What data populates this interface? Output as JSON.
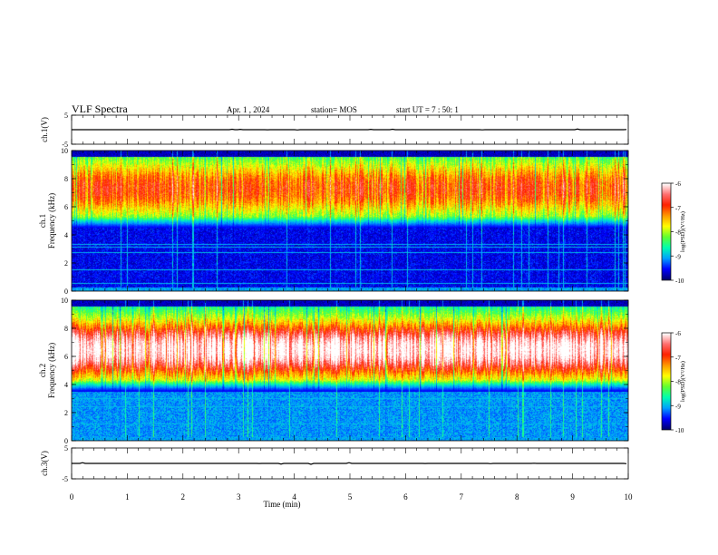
{
  "header": {
    "title": "VLF Spectra",
    "date": "Apr. 1 , 2024",
    "station": "station= MOS",
    "start": "start  UT =   7 : 50: 1"
  },
  "colors": {
    "colormap": [
      "#00006e",
      "#0000ff",
      "#00a0ff",
      "#00ffb0",
      "#60ff30",
      "#ffff00",
      "#ff9800",
      "#ff2000",
      "#ff7070",
      "#ffffff"
    ]
  },
  "chart_data": [
    {
      "type": "line",
      "name": "ch1-waveform",
      "ylabel": "ch.1(V)",
      "ylim": [
        -5,
        5
      ],
      "yticks": [
        "5",
        "-5"
      ],
      "x": [
        0,
        10
      ],
      "y": [
        0,
        0
      ]
    },
    {
      "type": "heatmap",
      "name": "ch1-spectrogram",
      "ylabel_line1": "ch.1",
      "ylabel_line2": "Frequency (kHz)",
      "ylim": [
        0,
        10
      ],
      "yticks": [
        "0",
        "2",
        "4",
        "6",
        "8",
        "10"
      ],
      "xlim": [
        0,
        10
      ],
      "band_top_kHz": 4.5,
      "peak_center_kHz": 7.3,
      "peak_level": 1.8,
      "lines_kHz": [
        0.5,
        1.5,
        2.7,
        3.1,
        3.3
      ],
      "colorbar": {
        "label": "log(PSD)(V²/Hz)",
        "ticks": [
          "-6",
          "-7",
          "-8",
          "-9",
          "-10"
        ],
        "range": [
          -10,
          -6
        ]
      }
    },
    {
      "type": "heatmap",
      "name": "ch2-spectrogram",
      "ylabel_line1": "ch.2",
      "ylabel_line2": "Frequency (kHz)",
      "ylim": [
        0,
        10
      ],
      "yticks": [
        "0",
        "2",
        "4",
        "6",
        "8",
        "10"
      ],
      "xlim": [
        0,
        10
      ],
      "band_top_kHz": 3.5,
      "peak_center_kHz": 6.5,
      "peak_level": 2.8,
      "lines_kHz": [
        1.2,
        2.4,
        3.0
      ],
      "colorbar": {
        "label": "log(PSD)(V²/Hz)",
        "ticks": [
          "-6",
          "-7",
          "-8",
          "-9",
          "-10"
        ],
        "range": [
          -10,
          -6
        ]
      }
    },
    {
      "type": "line",
      "name": "ch3-waveform",
      "ylabel": "ch.3(V)",
      "ylim": [
        -5,
        5
      ],
      "yticks": [
        "5",
        "-5"
      ],
      "x": [
        0,
        10
      ],
      "y": [
        0,
        0
      ]
    }
  ],
  "xaxis": {
    "label": "Time (min)",
    "ticks": [
      "0",
      "1",
      "2",
      "3",
      "4",
      "5",
      "6",
      "7",
      "8",
      "9",
      "10"
    ],
    "range": [
      0,
      10
    ]
  }
}
